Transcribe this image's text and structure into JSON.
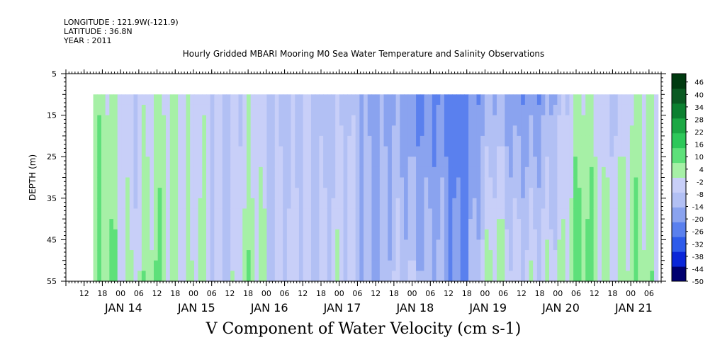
{
  "header": {
    "longitude": "LONGITUDE : 121.9W(-121.9)",
    "latitude": "LATITUDE : 36.8N",
    "year": "YEAR : 2011"
  },
  "chart_data": {
    "type": "heatmap",
    "title": "Hourly Gridded MBARI Mooring M0 Sea Water Temperature and Salinity Observations",
    "xlabel": "",
    "ylabel": "DEPTH (m)",
    "caption": "V Component of Water Velocity (cm s-1)",
    "x_range": [
      "2011-01-13 06:00",
      "2011-01-21 10:00"
    ],
    "data_x_range": [
      "2011-01-13 15:00",
      "2011-01-21 09:00"
    ],
    "ylim": [
      5,
      55
    ],
    "y_inverted": true,
    "data_depth_range": [
      10,
      55
    ],
    "y_ticks": [
      5,
      15,
      25,
      35,
      45,
      55
    ],
    "y_tick_labels": [
      "5",
      "15",
      "25",
      "35",
      "45",
      "55"
    ],
    "x_hour_ticks": [
      "12",
      "18",
      "00",
      "06",
      "12",
      "18",
      "00",
      "06",
      "12",
      "18",
      "00",
      "06",
      "12",
      "18",
      "00",
      "06",
      "12",
      "18",
      "00",
      "06",
      "12",
      "18",
      "00",
      "06",
      "12",
      "18",
      "00",
      "06",
      "12",
      "18",
      "00",
      "06"
    ],
    "x_date_labels": [
      "JAN 14",
      "JAN 15",
      "JAN 16",
      "JAN 17",
      "JAN 18",
      "JAN 19",
      "JAN 20",
      "JAN 21"
    ],
    "colorbar": {
      "min": -50,
      "max": 50,
      "tick_labels": [
        "46",
        "40",
        "34",
        "28",
        "22",
        "16",
        "10",
        "4",
        "-2",
        "-8",
        "-14",
        "-20",
        "-26",
        "-32",
        "-38",
        "-44",
        "-50"
      ],
      "palette": [
        "#000070",
        "#0a26d8",
        "#2e5bea",
        "#5a80ee",
        "#8aa3ef",
        "#b2c0f4",
        "#c8cff8",
        "#a6f0a6",
        "#5ee07a",
        "#2ec85a",
        "#1ca844",
        "#0c8030",
        "#0a5a22",
        "#003a10"
      ]
    },
    "v_velocity_by_time_cm_s": {
      "depth_band_m": "10-55",
      "note_units": "cm s-1",
      "time_labels": [
        "JAN 14 00",
        "JAN 14 12",
        "JAN 15 00",
        "JAN 15 12",
        "JAN 16 00",
        "JAN 16 12",
        "JAN 17 00",
        "JAN 17 12",
        "JAN 18 00",
        "JAN 18 12",
        "JAN 19 00",
        "JAN 19 12",
        "JAN 20 00",
        "JAN 20 12",
        "JAN 21 00"
      ],
      "surface_values": [
        4,
        -6,
        3,
        -8,
        -4,
        -10,
        -8,
        -16,
        -20,
        -26,
        -14,
        -22,
        2,
        -6,
        4
      ],
      "bottom_values": [
        6,
        2,
        4,
        -6,
        2,
        -8,
        -4,
        -14,
        -6,
        -22,
        4,
        -6,
        8,
        2,
        6
      ]
    }
  }
}
